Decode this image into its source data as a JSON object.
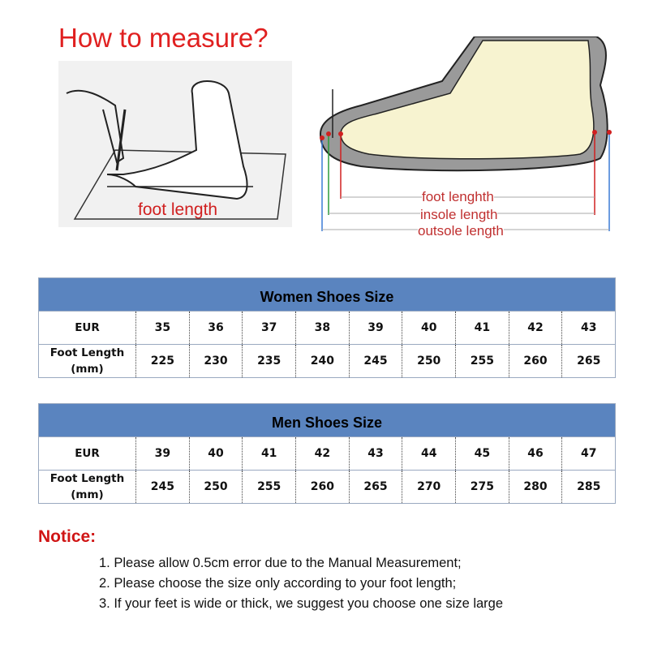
{
  "header": {
    "title": "How to measure?"
  },
  "left_illustration": {
    "label": "foot length"
  },
  "right_illustration": {
    "labels": [
      "foot lenghth",
      "insole length",
      "outsole length"
    ]
  },
  "women_table": {
    "title": "Women Shoes Size",
    "rows": [
      {
        "label": "EUR",
        "values": [
          "35",
          "36",
          "37",
          "38",
          "39",
          "40",
          "41",
          "42",
          "43"
        ]
      },
      {
        "label": "Foot Length (mm)",
        "values": [
          "225",
          "230",
          "235",
          "240",
          "245",
          "250",
          "255",
          "260",
          "265"
        ]
      }
    ]
  },
  "men_table": {
    "title": "Men Shoes Size",
    "rows": [
      {
        "label": "EUR",
        "values": [
          "39",
          "40",
          "41",
          "42",
          "43",
          "44",
          "45",
          "46",
          "47"
        ]
      },
      {
        "label": "Foot Length (mm)",
        "values": [
          "245",
          "250",
          "255",
          "260",
          "265",
          "270",
          "275",
          "280",
          "285"
        ]
      }
    ]
  },
  "notice": {
    "title": "Notice:",
    "items": [
      "1. Please allow 0.5cm error due to the Manual Measurement;",
      "2. Please choose the size only according to your foot length;",
      "3. If your feet is wide or thick, we suggest you choose one size large"
    ]
  },
  "colors": {
    "accent_red": "#e02020",
    "table_header": "#5a84bf"
  }
}
